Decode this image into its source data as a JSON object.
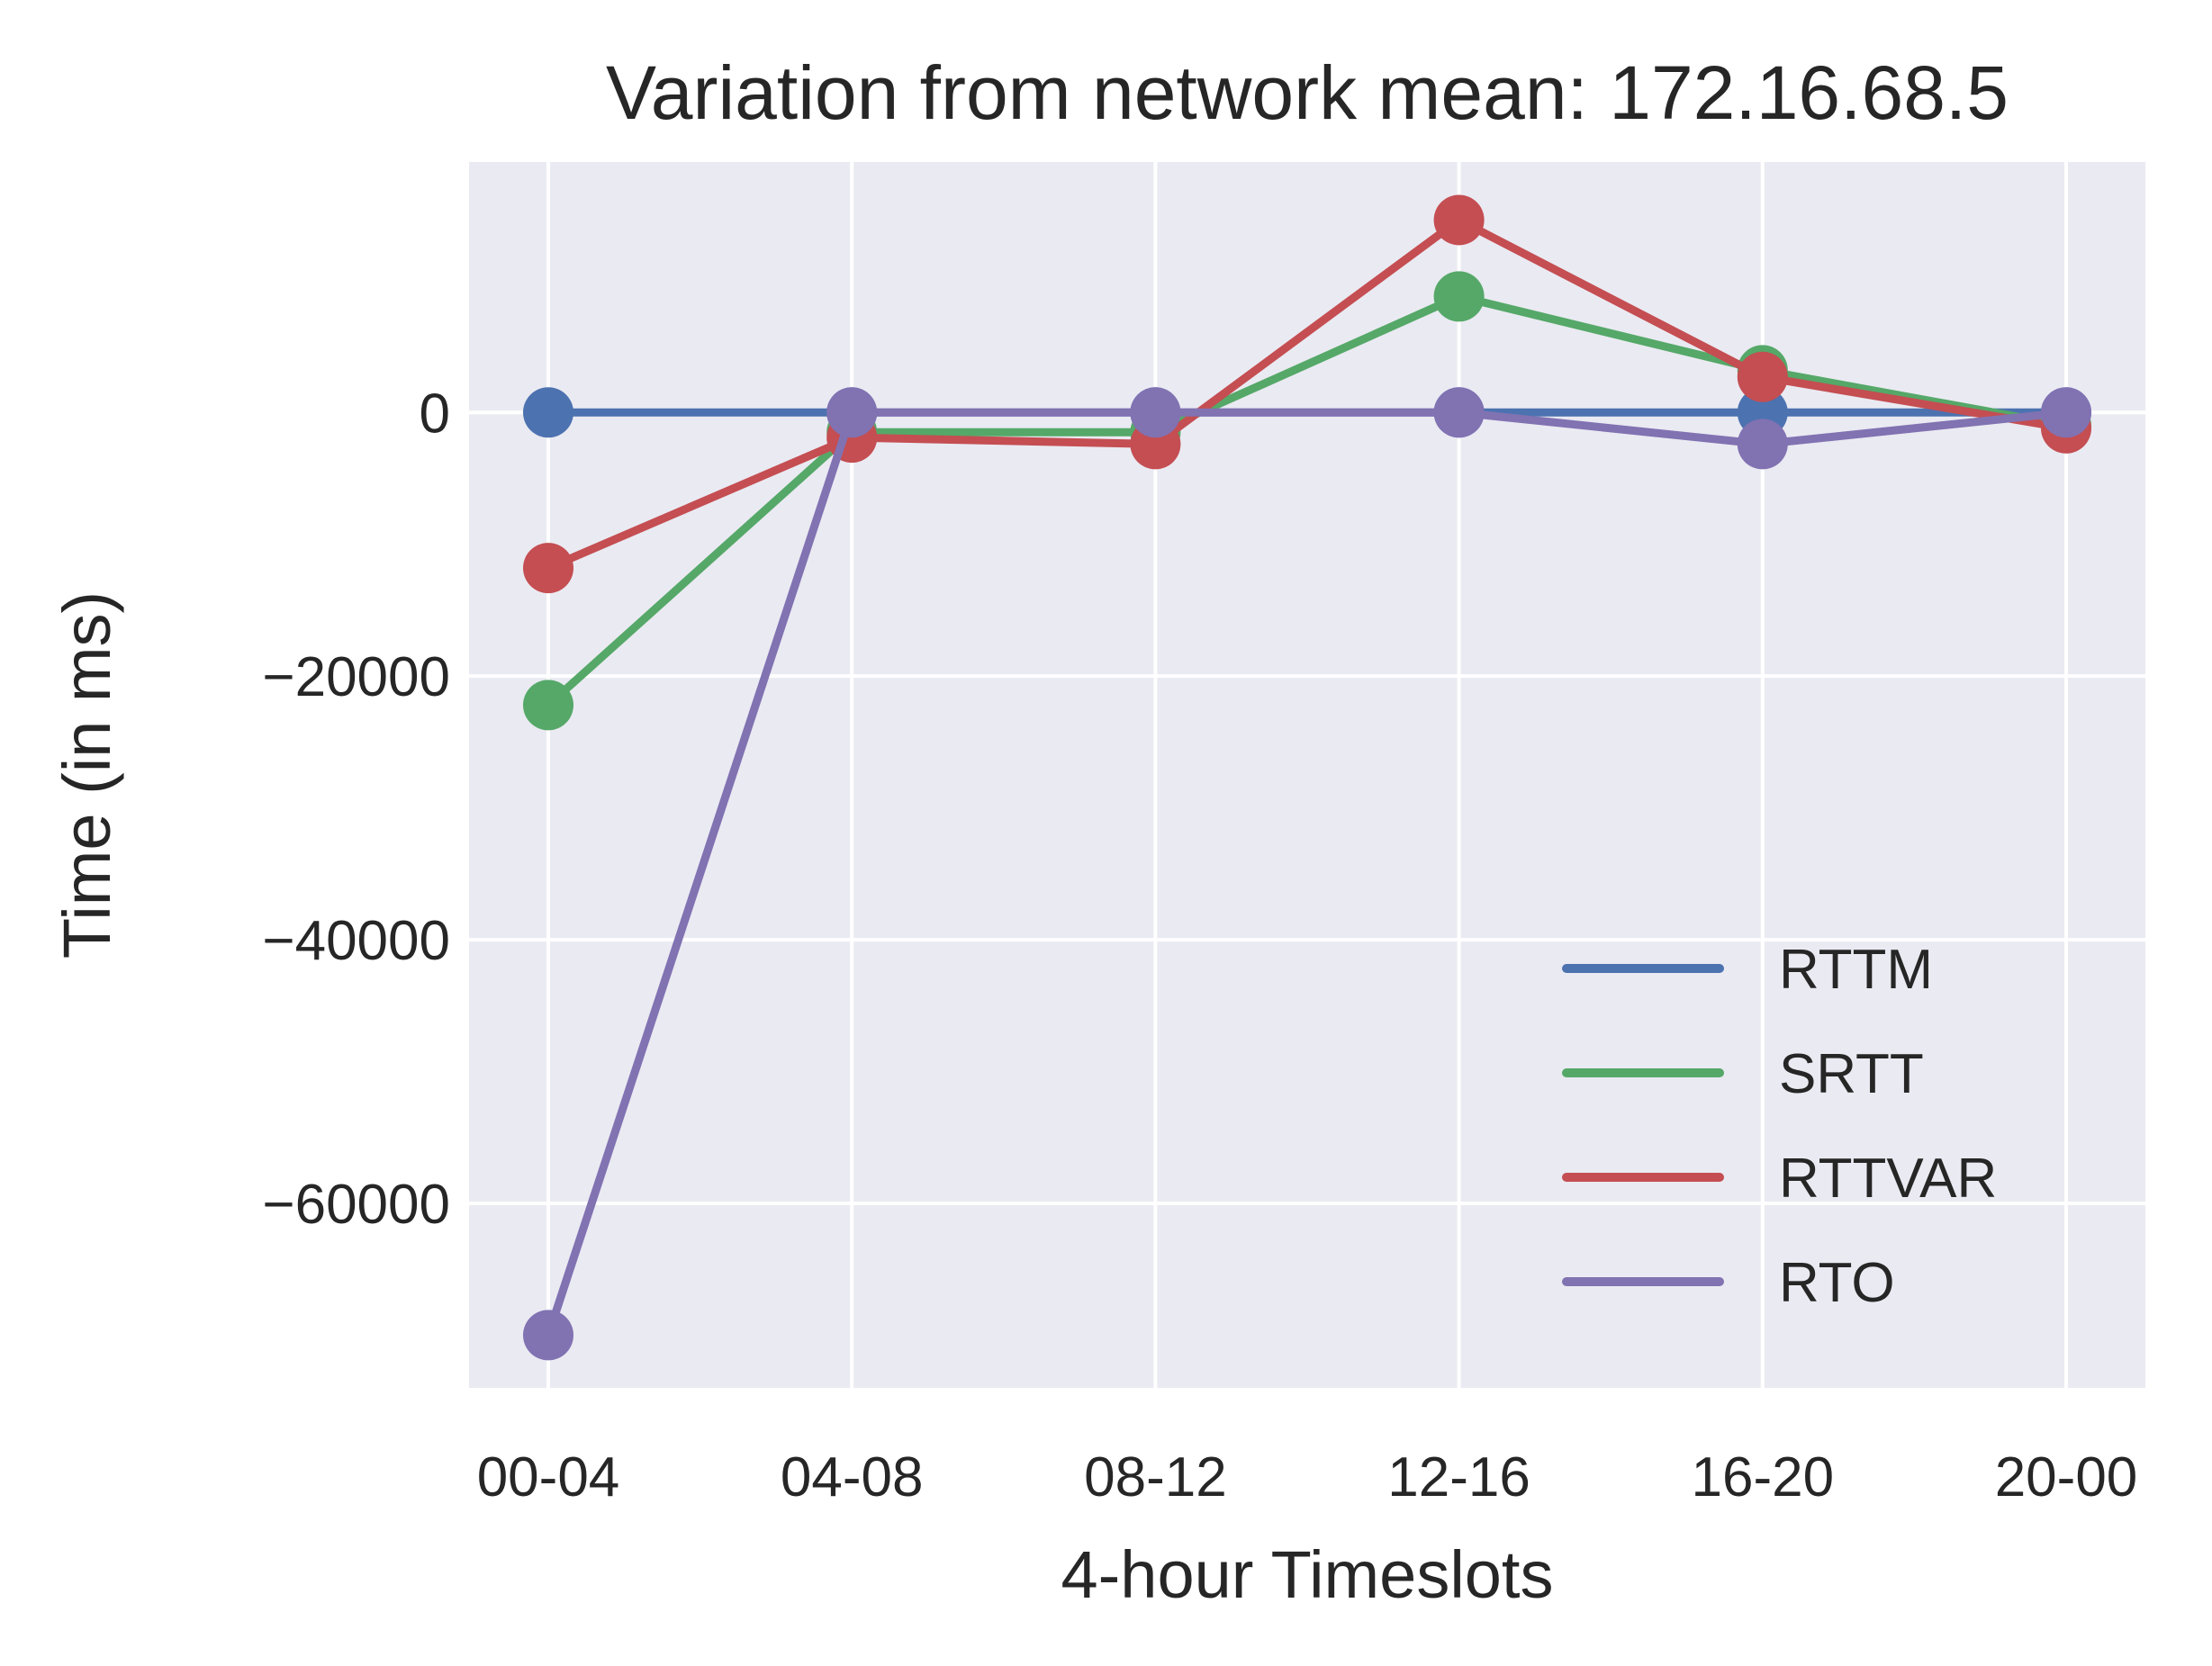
{
  "chart_data": {
    "type": "line",
    "title": "Variation from network mean: 172.16.68.5",
    "xlabel": "4-hour Timeslots",
    "ylabel": "Time (in ms)",
    "categories": [
      "00-04",
      "04-08",
      "08-12",
      "12-16",
      "16-20",
      "20-00"
    ],
    "ylim": [
      -74000,
      19000
    ],
    "yticks": [
      0,
      -20000,
      -40000,
      -60000
    ],
    "ytick_labels": [
      "0",
      "−20000",
      "−40000",
      "−60000"
    ],
    "grid": true,
    "background": "#EAEAF2",
    "legend_position": "lower-right",
    "series": [
      {
        "name": "RTTM",
        "color": "#4C72B0",
        "values": [
          0,
          0,
          0,
          0,
          0,
          0
        ]
      },
      {
        "name": "SRTT",
        "color": "#55A868",
        "values": [
          -22200,
          -1500,
          -1500,
          8800,
          3200,
          -1000
        ]
      },
      {
        "name": "RTTVAR",
        "color": "#C44E52",
        "values": [
          -11800,
          -1900,
          -2400,
          14600,
          2700,
          -1200
        ]
      },
      {
        "name": "RTO",
        "color": "#8172B2",
        "values": [
          -70000,
          0,
          0,
          0,
          -2400,
          0
        ]
      }
    ]
  }
}
